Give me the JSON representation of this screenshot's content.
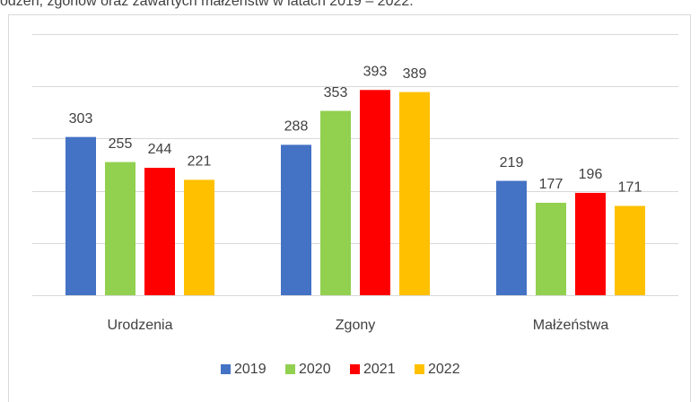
{
  "chart_data": {
    "type": "bar",
    "title": "odzeń, zgonów oraz zawartych małżeństw w latach 2019 – 2022.",
    "categories": [
      "Urodzenia",
      "Zgony",
      "Małżeństwa"
    ],
    "series": [
      {
        "name": "2019",
        "color": "#4472c4",
        "values": [
          303,
          288,
          219
        ]
      },
      {
        "name": "2020",
        "color": "#92d050",
        "values": [
          255,
          353,
          177
        ]
      },
      {
        "name": "2021",
        "color": "#ff0000",
        "values": [
          244,
          393,
          196
        ]
      },
      {
        "name": "2022",
        "color": "#ffc000",
        "values": [
          221,
          389,
          171
        ]
      }
    ],
    "ylim": [
      0,
      500
    ],
    "yticks": [
      0,
      100,
      200,
      300,
      400,
      500
    ],
    "grid": true,
    "legend": "bottom"
  }
}
